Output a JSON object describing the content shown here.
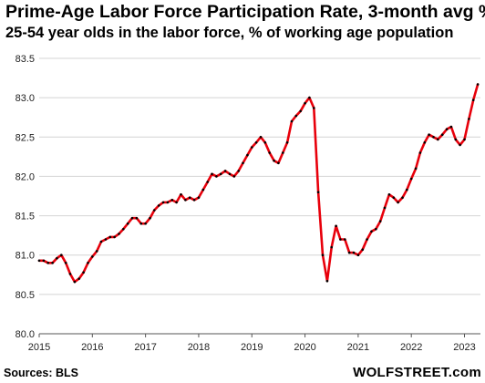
{
  "chart_data": {
    "type": "line",
    "title": "Prime-Age Labor Force Participation  Rate, 3-month avg %",
    "subtitle": "25-54 year olds in the labor force, % of working age population",
    "xlabel": "",
    "ylabel": "",
    "xlim": [
      2015.0,
      2023.3
    ],
    "ylim": [
      80.0,
      83.5
    ],
    "y_ticks": [
      "80.0",
      "80.5",
      "81.0",
      "81.5",
      "82.0",
      "82.5",
      "83.0",
      "83.5"
    ],
    "x_ticks": [
      "2015",
      "2016",
      "2017",
      "2018",
      "2019",
      "2020",
      "2021",
      "2022",
      "2023"
    ],
    "grid": "horizontal",
    "legend": "none",
    "colors": {
      "line": "#e8000b",
      "markers": "#000000",
      "grid": "#d4d4d4"
    },
    "series": [
      {
        "x": [
          "2015-01",
          "2015-02",
          "2015-03",
          "2015-04",
          "2015-05",
          "2015-06",
          "2015-07",
          "2015-08",
          "2015-09",
          "2015-10",
          "2015-11",
          "2015-12",
          "2016-01",
          "2016-02",
          "2016-03",
          "2016-04",
          "2016-05",
          "2016-06",
          "2016-07",
          "2016-08",
          "2016-09",
          "2016-10",
          "2016-11",
          "2016-12",
          "2017-01",
          "2017-02",
          "2017-03",
          "2017-04",
          "2017-05",
          "2017-06",
          "2017-07",
          "2017-08",
          "2017-09",
          "2017-10",
          "2017-11",
          "2017-12",
          "2018-01",
          "2018-02",
          "2018-03",
          "2018-04",
          "2018-05",
          "2018-06",
          "2018-07",
          "2018-08",
          "2018-09",
          "2018-10",
          "2018-11",
          "2018-12",
          "2019-01",
          "2019-02",
          "2019-03",
          "2019-04",
          "2019-05",
          "2019-06",
          "2019-07",
          "2019-08",
          "2019-09",
          "2019-10",
          "2019-11",
          "2019-12",
          "2020-01",
          "2020-02",
          "2020-03",
          "2020-04",
          "2020-05",
          "2020-06",
          "2020-07",
          "2020-08",
          "2020-09",
          "2020-10",
          "2020-11",
          "2020-12",
          "2021-01",
          "2021-02",
          "2021-03",
          "2021-04",
          "2021-05",
          "2021-06",
          "2021-07",
          "2021-08",
          "2021-09",
          "2021-10",
          "2021-11",
          "2021-12",
          "2022-01",
          "2022-02",
          "2022-03",
          "2022-04",
          "2022-05",
          "2022-06",
          "2022-07",
          "2022-08",
          "2022-09",
          "2022-10",
          "2022-11",
          "2022-12",
          "2023-01",
          "2023-02",
          "2023-03",
          "2023-04"
        ],
        "values": [
          80.93,
          80.93,
          80.9,
          80.9,
          80.96,
          81.0,
          80.9,
          80.76,
          80.66,
          80.7,
          80.78,
          80.9,
          80.98,
          81.05,
          81.17,
          81.2,
          81.23,
          81.23,
          81.27,
          81.33,
          81.4,
          81.47,
          81.47,
          81.4,
          81.4,
          81.47,
          81.57,
          81.63,
          81.67,
          81.67,
          81.7,
          81.67,
          81.77,
          81.7,
          81.73,
          81.7,
          81.73,
          81.83,
          81.93,
          82.03,
          82.0,
          82.03,
          82.07,
          82.03,
          82.0,
          82.07,
          82.17,
          82.27,
          82.37,
          82.43,
          82.5,
          82.43,
          82.3,
          82.2,
          82.17,
          82.3,
          82.43,
          82.7,
          82.77,
          82.83,
          82.93,
          83.0,
          82.87,
          81.8,
          81.0,
          80.67,
          81.1,
          81.37,
          81.2,
          81.2,
          81.03,
          81.03,
          81.0,
          81.07,
          81.2,
          81.3,
          81.33,
          81.43,
          81.6,
          81.77,
          81.73,
          81.67,
          81.73,
          81.83,
          81.97,
          82.1,
          82.3,
          82.43,
          82.53,
          82.5,
          82.47,
          82.53,
          82.6,
          82.63,
          82.47,
          82.4,
          82.47,
          82.73,
          82.97,
          83.17
        ]
      }
    ]
  },
  "footer": {
    "source": "Sources: BLS",
    "brand": "WOLFSTREET.com"
  }
}
